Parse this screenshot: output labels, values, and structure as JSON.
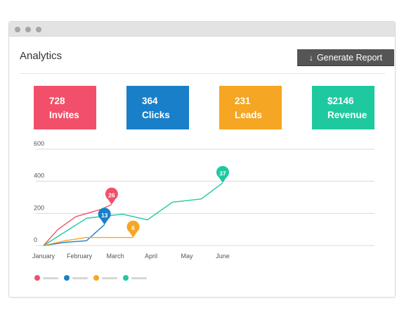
{
  "page": {
    "title": "Analytics"
  },
  "toolbar": {
    "generate_label": "Generate Report",
    "generate_icon": "download-arrow-icon"
  },
  "stats": [
    {
      "value": "728",
      "label": "Invites",
      "color": "#f2506a"
    },
    {
      "value": "364",
      "label": "Clicks",
      "color": "#1a7fc9"
    },
    {
      "value": "231",
      "label": "Leads",
      "color": "#f5a623"
    },
    {
      "value": "$2146",
      "label": "Revenue",
      "color": "#1ec9a0"
    }
  ],
  "chart_data": {
    "type": "line",
    "categories": [
      "January",
      "February",
      "March",
      "April",
      "May",
      "June"
    ],
    "y_ticks": [
      "0",
      "200",
      "400",
      "600"
    ],
    "ylim": [
      0,
      600
    ],
    "grid": true,
    "legend": "bottom-left",
    "series": [
      {
        "color": "#f2506a",
        "x": [
          0,
          0.4,
          0.9,
          1.6,
          1.9
        ],
        "y": [
          0,
          100,
          180,
          225,
          255
        ],
        "marker": {
          "x": 1.9,
          "y": 255,
          "label": "26"
        }
      },
      {
        "color": "#1a7fc9",
        "x": [
          0,
          0.6,
          1.2,
          1.7
        ],
        "y": [
          0,
          20,
          30,
          130
        ],
        "marker": {
          "x": 1.7,
          "y": 130,
          "label": "13"
        }
      },
      {
        "color": "#f5a623",
        "x": [
          0,
          0.6,
          1.2,
          1.9,
          2.5
        ],
        "y": [
          0,
          30,
          50,
          50,
          50
        ],
        "marker": {
          "x": 2.5,
          "y": 50,
          "label": "6"
        }
      },
      {
        "color": "#1ec9a0",
        "x": [
          0,
          1.2,
          2.2,
          2.9,
          3.6,
          4.4,
          5.0
        ],
        "y": [
          0,
          170,
          195,
          160,
          270,
          290,
          390
        ],
        "marker": {
          "x": 5.0,
          "y": 390,
          "label": "37"
        }
      }
    ]
  }
}
